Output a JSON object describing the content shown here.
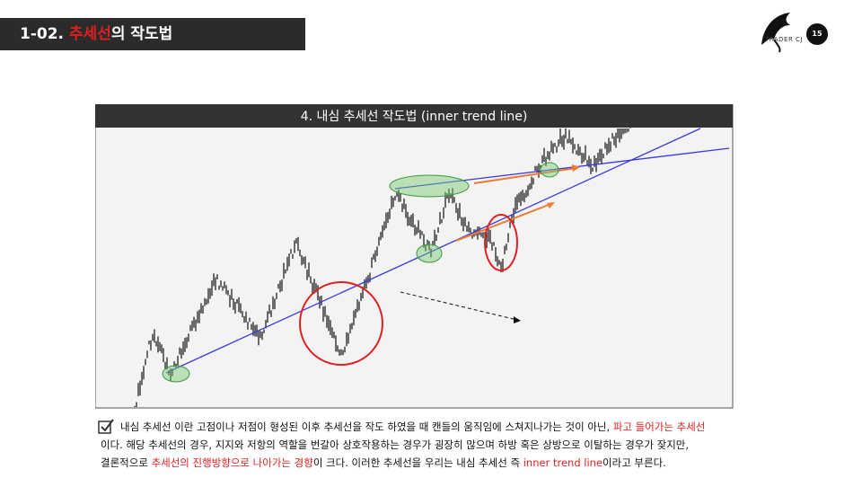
{
  "header": {
    "number": "1-02.",
    "title_highlight": "추세선",
    "title_rest": "의 작도법"
  },
  "logo": "TRADER CJ",
  "page_number": "15",
  "figure": {
    "title": "4. 내심 추세선 작도법 (inner trend line)"
  },
  "body": {
    "lines": [
      [
        {
          "text": "내심 추세선 이란 고점이나 저점이 형성된 이후 추세선을 작도 하였을 때 캔들의 움직임에 스쳐지나가는 것이 아닌, ",
          "highlight": false
        },
        {
          "text": "파고 들어가는 추세선",
          "highlight": true
        }
      ],
      [
        {
          "text": "이다. 해당 추세선의 경우, 지지와 저항의 역할을 번갈아 상호작용하는 경우가 굉장히 많으며 하방 혹은 상방으로 이탈하는 경우가 잦지만,",
          "highlight": false
        }
      ],
      [
        {
          "text": "결론적으로 ",
          "highlight": false
        },
        {
          "text": "추세선의 진행방향으로 나아가는 경향",
          "highlight": true
        },
        {
          "text": "이 크다. 이러한 추세선을 우리는 내심 추세선 즉  ",
          "highlight": false
        },
        {
          "text": "inner trend line",
          "highlight": true
        },
        {
          "text": "이라고 부른다.",
          "highlight": false
        }
      ]
    ]
  }
}
